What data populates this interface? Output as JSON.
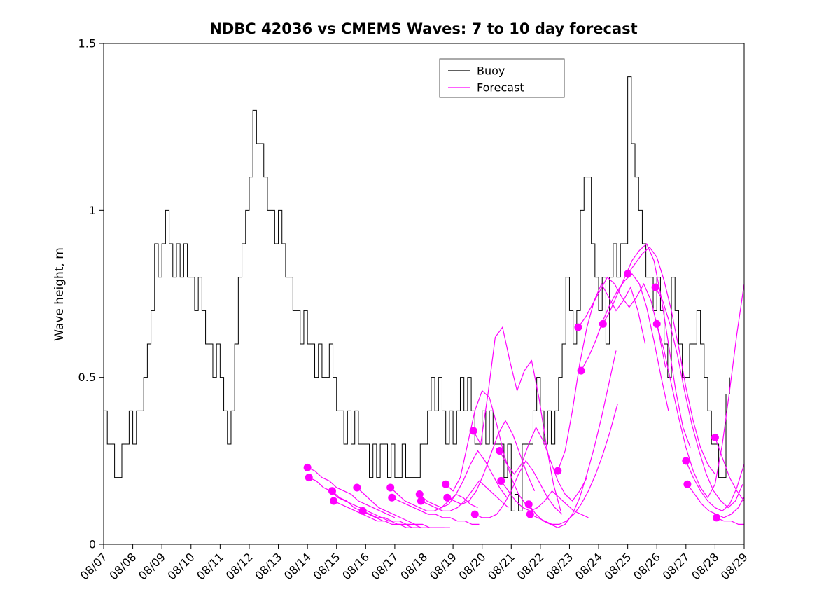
{
  "figure": {
    "background": "#ffffff",
    "axes_edge_color": "#000000"
  },
  "chart_data": {
    "type": "line",
    "title": "NDBC 42036 vs CMEMS Waves: 7 to 10 day forecast",
    "xlabel": "",
    "ylabel": "Wave height, m",
    "ylim": [
      0,
      1.5
    ],
    "yticks": [
      0,
      0.5,
      1,
      1.5
    ],
    "ytick_labels": [
      "0",
      "0.5",
      "1",
      "1.5"
    ],
    "x_domain": [
      0,
      22
    ],
    "xtick_days": [
      0,
      1,
      2,
      3,
      4,
      5,
      6,
      7,
      8,
      9,
      10,
      11,
      12,
      13,
      14,
      15,
      16,
      17,
      18,
      19,
      20,
      21,
      22
    ],
    "xtick_labels": [
      "08/07",
      "08/08",
      "08/09",
      "08/10",
      "08/11",
      "08/12",
      "08/13",
      "08/14",
      "08/15",
      "08/16",
      "08/17",
      "08/18",
      "08/19",
      "08/20",
      "08/21",
      "08/22",
      "08/23",
      "08/24",
      "08/25",
      "08/26",
      "08/27",
      "08/28",
      "08/29"
    ],
    "grid": false,
    "legend_position": "upper center",
    "legend": [
      {
        "label": "Buoy",
        "color": "#000000"
      },
      {
        "label": "Forecast",
        "color": "#ff00ff"
      }
    ],
    "marker": {
      "color": "#ff00ff",
      "radius": 5.5,
      "meaning": "forecast start point"
    },
    "series": [
      {
        "name": "Buoy",
        "color": "#000000",
        "style": "step",
        "line_width": 1,
        "x_start_day": 0,
        "x_step_days": 0.125,
        "values": [
          0.4,
          0.3,
          0.3,
          0.2,
          0.2,
          0.3,
          0.3,
          0.4,
          0.3,
          0.4,
          0.4,
          0.5,
          0.6,
          0.7,
          0.9,
          0.8,
          0.9,
          1.0,
          0.9,
          0.8,
          0.9,
          0.8,
          0.9,
          0.8,
          0.8,
          0.7,
          0.8,
          0.7,
          0.6,
          0.6,
          0.5,
          0.6,
          0.5,
          0.4,
          0.3,
          0.4,
          0.6,
          0.8,
          0.9,
          1.0,
          1.1,
          1.3,
          1.2,
          1.2,
          1.1,
          1.0,
          1.0,
          0.9,
          1.0,
          0.9,
          0.8,
          0.8,
          0.7,
          0.7,
          0.6,
          0.7,
          0.6,
          0.6,
          0.5,
          0.6,
          0.5,
          0.5,
          0.6,
          0.5,
          0.4,
          0.4,
          0.3,
          0.4,
          0.3,
          0.4,
          0.3,
          0.3,
          0.3,
          0.2,
          0.3,
          0.2,
          0.3,
          0.3,
          0.2,
          0.3,
          0.2,
          0.2,
          0.3,
          0.2,
          0.2,
          0.2,
          0.2,
          0.3,
          0.3,
          0.4,
          0.5,
          0.4,
          0.5,
          0.4,
          0.3,
          0.4,
          0.3,
          0.4,
          0.5,
          0.4,
          0.5,
          0.4,
          0.3,
          0.3,
          0.4,
          0.3,
          0.4,
          0.3,
          0.3,
          0.3,
          0.2,
          0.3,
          0.1,
          0.15,
          0.1,
          0.3,
          0.3,
          0.3,
          0.4,
          0.5,
          0.4,
          0.3,
          0.4,
          0.3,
          0.4,
          0.5,
          0.6,
          0.8,
          0.7,
          0.6,
          0.7,
          1.0,
          1.1,
          1.1,
          0.9,
          0.8,
          0.7,
          0.8,
          0.6,
          0.8,
          0.9,
          0.8,
          0.9,
          0.9,
          1.4,
          1.2,
          1.1,
          1.0,
          0.9,
          0.8,
          0.8,
          0.7,
          0.8,
          0.7,
          0.6,
          0.5,
          0.8,
          0.7,
          0.6,
          0.5,
          0.5,
          0.6,
          0.6,
          0.7,
          0.6,
          0.5,
          0.4,
          0.3,
          0.3,
          0.2,
          0.2,
          0.45,
          0.5
        ]
      },
      {
        "name": "Forecast",
        "color": "#ff00ff",
        "style": "line",
        "line_width": 1.2,
        "x_step_days": 0.25,
        "marker_on_first_point": true,
        "traces": [
          {
            "start_day": 7.0,
            "values": [
              0.23,
              0.22,
              0.2,
              0.19,
              0.17,
              0.16,
              0.15,
              0.13,
              0.12,
              0.11,
              0.1,
              0.09,
              0.08
            ]
          },
          {
            "start_day": 7.05,
            "values": [
              0.2,
              0.19,
              0.17,
              0.16,
              0.14,
              0.13,
              0.12,
              0.11,
              0.1,
              0.09,
              0.08,
              0.07,
              0.07
            ]
          },
          {
            "start_day": 7.85,
            "values": [
              0.16,
              0.14,
              0.13,
              0.11,
              0.1,
              0.09,
              0.08,
              0.07,
              0.07,
              0.06,
              0.06,
              0.05,
              0.05
            ]
          },
          {
            "start_day": 7.9,
            "values": [
              0.13,
              0.12,
              0.11,
              0.1,
              0.09,
              0.08,
              0.07,
              0.07,
              0.06,
              0.06,
              0.05,
              0.05,
              0.05
            ]
          },
          {
            "start_day": 8.7,
            "values": [
              0.17,
              0.15,
              0.13,
              0.11,
              0.1,
              0.09,
              0.08,
              0.07,
              0.06,
              0.06,
              0.05,
              0.05,
              0.05
            ]
          },
          {
            "start_day": 8.9,
            "values": [
              0.1,
              0.09,
              0.08,
              0.08,
              0.07,
              0.07,
              0.06,
              0.06,
              0.05,
              0.05,
              0.05,
              0.05,
              0.05
            ]
          },
          {
            "start_day": 9.85,
            "values": [
              0.17,
              0.15,
              0.13,
              0.12,
              0.11,
              0.1,
              0.1,
              0.11,
              0.13,
              0.15,
              0.14,
              0.12,
              0.11
            ]
          },
          {
            "start_day": 9.9,
            "values": [
              0.14,
              0.13,
              0.12,
              0.11,
              0.1,
              0.09,
              0.09,
              0.08,
              0.08,
              0.07,
              0.07,
              0.06,
              0.06
            ]
          },
          {
            "start_day": 10.85,
            "values": [
              0.15,
              0.13,
              0.12,
              0.11,
              0.12,
              0.15,
              0.19,
              0.24,
              0.28,
              0.25,
              0.21,
              0.17,
              0.14
            ]
          },
          {
            "start_day": 10.9,
            "values": [
              0.13,
              0.12,
              0.11,
              0.1,
              0.1,
              0.11,
              0.13,
              0.16,
              0.19,
              0.17,
              0.15,
              0.13,
              0.11
            ]
          },
          {
            "start_day": 11.75,
            "values": [
              0.18,
              0.16,
              0.2,
              0.3,
              0.4,
              0.46,
              0.44,
              0.36,
              0.27,
              0.2,
              0.15,
              0.12,
              0.1
            ]
          },
          {
            "start_day": 11.8,
            "values": [
              0.14,
              0.13,
              0.12,
              0.13,
              0.16,
              0.21,
              0.27,
              0.33,
              0.37,
              0.33,
              0.27,
              0.21,
              0.16
            ]
          },
          {
            "start_day": 12.7,
            "values": [
              0.34,
              0.3,
              0.45,
              0.62,
              0.65,
              0.55,
              0.46,
              0.52,
              0.55,
              0.44,
              0.3,
              0.18,
              0.1
            ]
          },
          {
            "start_day": 12.75,
            "values": [
              0.09,
              0.08,
              0.08,
              0.09,
              0.12,
              0.16,
              0.21,
              0.25,
              0.22,
              0.18,
              0.14,
              0.11,
              0.09
            ]
          },
          {
            "start_day": 13.6,
            "values": [
              0.28,
              0.24,
              0.21,
              0.24,
              0.3,
              0.35,
              0.31,
              0.25,
              0.19,
              0.15,
              0.13,
              0.16,
              0.2
            ]
          },
          {
            "start_day": 13.65,
            "values": [
              0.19,
              0.16,
              0.13,
              0.11,
              0.1,
              0.11,
              0.13,
              0.16,
              0.14,
              0.12,
              0.1,
              0.09,
              0.08
            ]
          },
          {
            "start_day": 14.6,
            "values": [
              0.12,
              0.09,
              0.07,
              0.06,
              0.05,
              0.06,
              0.09,
              0.14,
              0.21,
              0.29,
              0.38,
              0.48,
              0.58
            ]
          },
          {
            "start_day": 14.65,
            "values": [
              0.09,
              0.08,
              0.07,
              0.06,
              0.06,
              0.07,
              0.09,
              0.12,
              0.16,
              0.21,
              0.27,
              0.34,
              0.42
            ]
          },
          {
            "start_day": 15.6,
            "values": [
              0.22,
              0.28,
              0.4,
              0.54,
              0.65,
              0.73,
              0.78,
              0.74,
              0.7,
              0.73,
              0.77,
              0.7,
              0.6
            ]
          },
          {
            "start_day": 16.3,
            "values": [
              0.65,
              0.68,
              0.72,
              0.76,
              0.8,
              0.78,
              0.74,
              0.71,
              0.74,
              0.78,
              0.73,
              0.64,
              0.53
            ]
          },
          {
            "start_day": 16.4,
            "values": [
              0.52,
              0.56,
              0.61,
              0.67,
              0.72,
              0.76,
              0.79,
              0.81,
              0.78,
              0.71,
              0.61,
              0.5,
              0.4
            ]
          },
          {
            "start_day": 17.15,
            "values": [
              0.66,
              0.7,
              0.75,
              0.8,
              0.85,
              0.88,
              0.9,
              0.85,
              0.74,
              0.6,
              0.46,
              0.35,
              0.29
            ]
          },
          {
            "start_day": 18.0,
            "values": [
              0.81,
              0.84,
              0.87,
              0.89,
              0.86,
              0.79,
              0.7,
              0.59,
              0.47,
              0.37,
              0.29,
              0.24,
              0.21
            ]
          },
          {
            "start_day": 18.95,
            "values": [
              0.77,
              0.73,
              0.66,
              0.57,
              0.46,
              0.36,
              0.28,
              0.21,
              0.16,
              0.13,
              0.11,
              0.13,
              0.18
            ]
          },
          {
            "start_day": 19.0,
            "values": [
              0.66,
              0.58,
              0.48,
              0.38,
              0.29,
              0.22,
              0.17,
              0.14,
              0.18,
              0.3,
              0.46,
              0.63,
              0.78
            ]
          },
          {
            "start_day": 20.0,
            "values": [
              0.25,
              0.2,
              0.16,
              0.13,
              0.11,
              0.1,
              0.12,
              0.17,
              0.24,
              0.33,
              0.44,
              0.55,
              0.66
            ]
          },
          {
            "start_day": 20.05,
            "values": [
              0.18,
              0.15,
              0.12,
              0.1,
              0.09,
              0.08,
              0.09,
              0.11,
              0.15,
              0.21,
              0.29,
              0.38,
              0.48
            ]
          },
          {
            "start_day": 21.0,
            "values": [
              0.32,
              0.26,
              0.2,
              0.16,
              0.13,
              0.15,
              0.22,
              0.33,
              0.46,
              0.6,
              0.71,
              0.78,
              0.8
            ]
          },
          {
            "start_day": 21.05,
            "values": [
              0.08,
              0.07,
              0.07,
              0.06,
              0.06,
              0.08,
              0.12,
              0.18,
              0.26,
              0.35,
              0.45,
              0.54,
              0.62
            ]
          }
        ]
      }
    ]
  }
}
